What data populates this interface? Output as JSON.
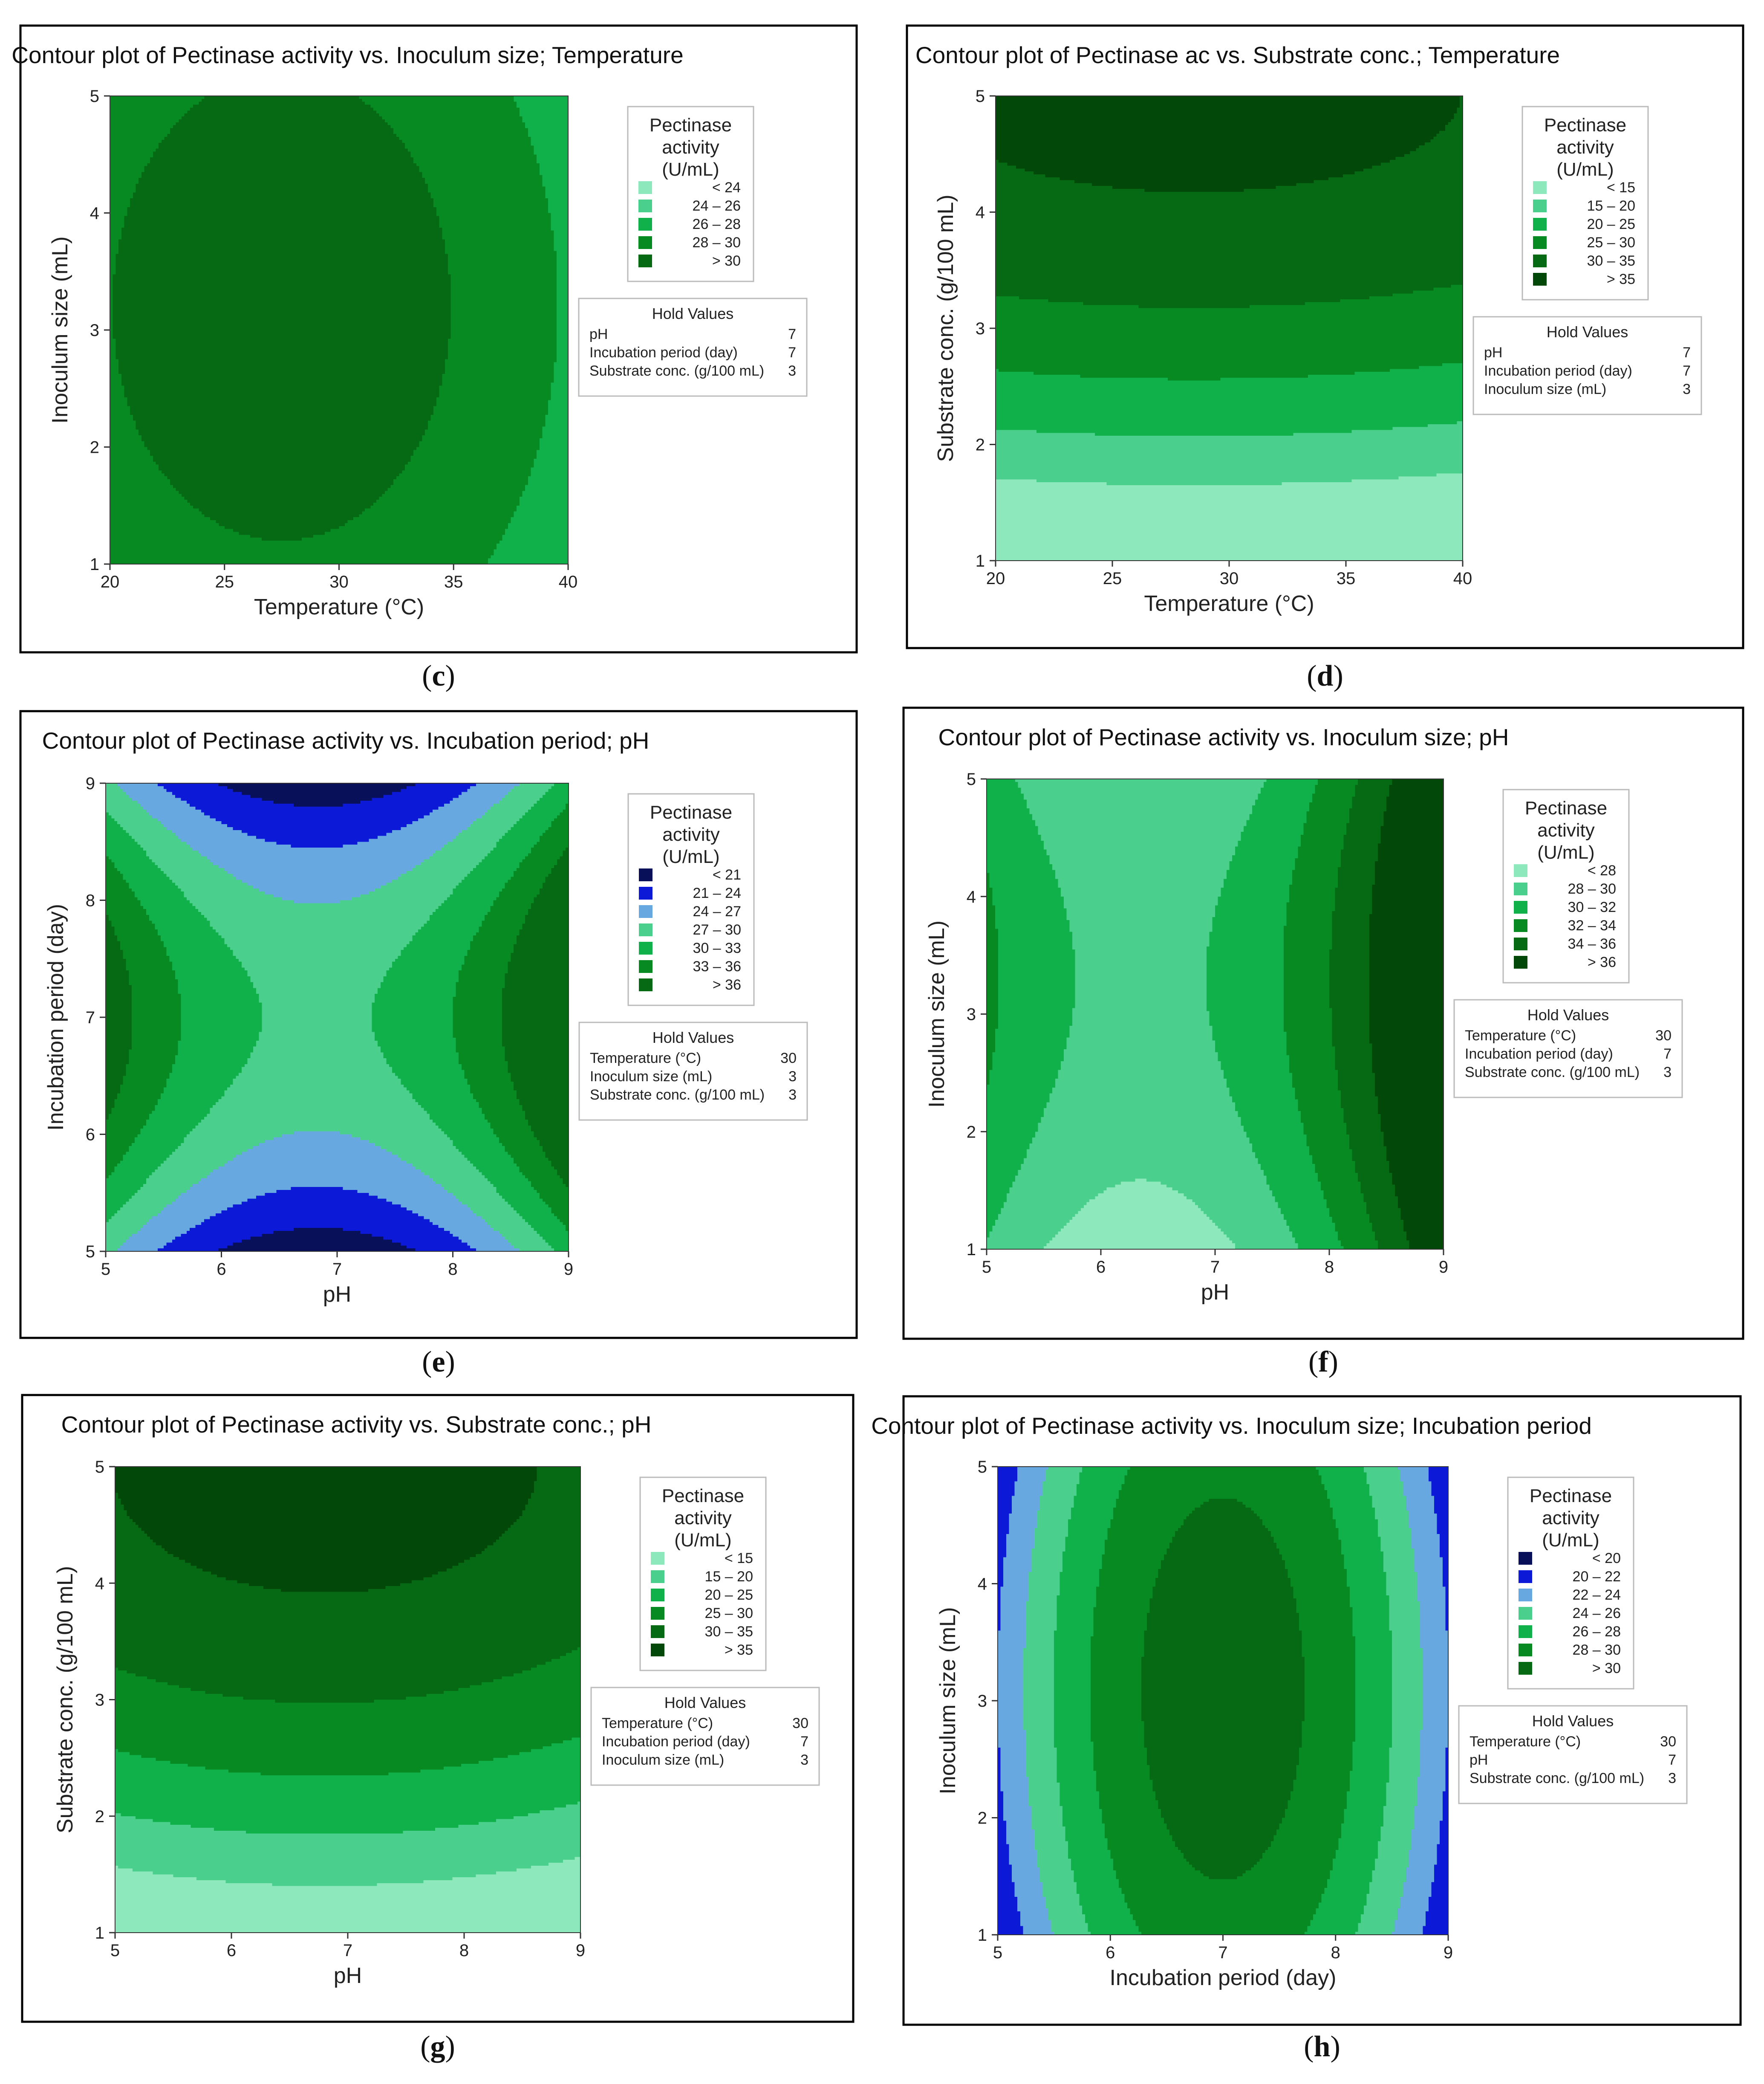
{
  "colors": {
    "green_lightest": "#8de8bc",
    "green_light": "#4bcf8c",
    "green_mid": "#10b04a",
    "green_dark": "#078a22",
    "green_darker": "#066a14",
    "green_darkest": "#024808",
    "blue_navy": "#08105a",
    "blue_strong": "#0c1ad8",
    "blue_sky": "#68a8e0"
  },
  "chart_data": [
    {
      "type": "contour",
      "caption": "c",
      "title": "Contour plot of Pectinase activity vs. Inoculum size; Temperature",
      "xlabel": "Temperature (°C)",
      "ylabel": "Inoculum size (mL)",
      "xlim": [
        20,
        40
      ],
      "ylim": [
        1,
        5
      ],
      "xticks": [
        "20",
        "25",
        "30",
        "35",
        "40"
      ],
      "yticks": [
        "1",
        "2",
        "3",
        "4",
        "5"
      ],
      "model": {
        "base": 31.2,
        "cx": 27.5,
        "ax": -0.022,
        "cy": 3.2,
        "ay": -0.3,
        "bx": 0,
        "by": 0
      },
      "levels": [
        {
          "min": null,
          "max": 24,
          "label": "< 24",
          "color": "#8de8bc"
        },
        {
          "min": 24,
          "max": 26,
          "label": "24 – 26",
          "color": "#4bcf8c"
        },
        {
          "min": 26,
          "max": 28,
          "label": "26 – 28",
          "color": "#10b04a"
        },
        {
          "min": 28,
          "max": 30,
          "label": "28 – 30",
          "color": "#078a22"
        },
        {
          "min": 30,
          "max": null,
          "label": "> 30",
          "color": "#066a14"
        }
      ],
      "legend_title": [
        "Pectinase",
        "activity",
        "(U/mL)"
      ],
      "hold_title": "Hold Values",
      "hold": [
        {
          "name": "pH",
          "value": "7"
        },
        {
          "name": "Incubation period (day)",
          "value": "7"
        },
        {
          "name": "Substrate conc. (g/100 mL)",
          "value": "3"
        }
      ]
    },
    {
      "type": "contour",
      "caption": "d",
      "title": "Contour plot of Pectinase ac vs. Substrate conc.; Temperature",
      "xlabel": "Temperature (°C)",
      "ylabel": "Substrate conc. (g/100 mL)",
      "xlim": [
        20,
        40
      ],
      "ylim": [
        1,
        5
      ],
      "xticks": [
        "20",
        "25",
        "30",
        "35",
        "40"
      ],
      "yticks": [
        "1",
        "2",
        "3",
        "4",
        "5"
      ],
      "model": {
        "base": 36.3,
        "cx": 28.5,
        "ax": -0.01,
        "cy": 5.0,
        "ay": -1.9,
        "bx": 0,
        "by": 0
      },
      "levels": [
        {
          "min": null,
          "max": 15,
          "label": "< 15",
          "color": "#8de8bc"
        },
        {
          "min": 15,
          "max": 20,
          "label": "15 – 20",
          "color": "#4bcf8c"
        },
        {
          "min": 20,
          "max": 25,
          "label": "20 – 25",
          "color": "#10b04a"
        },
        {
          "min": 25,
          "max": 30,
          "label": "25 – 30",
          "color": "#078a22"
        },
        {
          "min": 30,
          "max": 35,
          "label": "30 – 35",
          "color": "#066a14"
        },
        {
          "min": 35,
          "max": null,
          "label": "> 35",
          "color": "#024808"
        }
      ],
      "legend_title": [
        "Pectinase",
        "activity",
        "(U/mL)"
      ],
      "hold_title": "Hold Values",
      "hold": [
        {
          "name": "pH",
          "value": "7"
        },
        {
          "name": "Incubation period (day)",
          "value": "7"
        },
        {
          "name": "Inoculum size (mL)",
          "value": "3"
        }
      ]
    },
    {
      "type": "contour",
      "caption": "e",
      "title": "Contour plot of Pectinase activity vs. Incubation period; pH",
      "xlabel": "pH",
      "ylabel": "Incubation period (day)",
      "xlim": [
        5,
        9
      ],
      "ylim": [
        5,
        9
      ],
      "xticks": [
        "5",
        "6",
        "7",
        "8",
        "9"
      ],
      "yticks": [
        "5",
        "6",
        "7",
        "8",
        "9"
      ],
      "model": {
        "base": 29.5,
        "cx": 7.0,
        "ax": 2.6,
        "cy": 7.0,
        "ay": -2.6,
        "bx": 0.9,
        "by": 0
      },
      "levels": [
        {
          "min": null,
          "max": 21,
          "label": "< 21",
          "color": "#08105a"
        },
        {
          "min": 21,
          "max": 24,
          "label": "21 – 24",
          "color": "#0c1ad8"
        },
        {
          "min": 24,
          "max": 27,
          "label": "24 – 27",
          "color": "#68a8e0"
        },
        {
          "min": 27,
          "max": 30,
          "label": "27 – 30",
          "color": "#4bcf8c"
        },
        {
          "min": 30,
          "max": 33,
          "label": "30 – 33",
          "color": "#10b04a"
        },
        {
          "min": 33,
          "max": 36,
          "label": "33 – 36",
          "color": "#078a22"
        },
        {
          "min": 36,
          "max": null,
          "label": "> 36",
          "color": "#066a14"
        }
      ],
      "legend_title": [
        "Pectinase",
        "activity",
        "(U/mL)"
      ],
      "hold_title": "Hold Values",
      "hold": [
        {
          "name": "Temperature (°C)",
          "value": "30"
        },
        {
          "name": "Inoculum size (mL)",
          "value": "3"
        },
        {
          "name": "Substrate conc. (g/100 mL)",
          "value": "3"
        }
      ]
    },
    {
      "type": "contour",
      "caption": "f",
      "title": "Contour plot of Pectinase activity vs. Inoculum size; pH",
      "xlabel": "pH",
      "ylabel": "Inoculum size (mL)",
      "xlim": [
        5,
        9
      ],
      "ylim": [
        1,
        5
      ],
      "xticks": [
        "5",
        "6",
        "7",
        "8",
        "9"
      ],
      "yticks": [
        "1",
        "2",
        "3",
        "4",
        "5"
      ],
      "model": {
        "base": 29.5,
        "cx": 6.5,
        "ax": 1.65,
        "cy": 3.3,
        "ay": -0.5,
        "bx": 0.5,
        "by": 0
      },
      "levels": [
        {
          "min": null,
          "max": 28,
          "label": "< 28",
          "color": "#8de8bc"
        },
        {
          "min": 28,
          "max": 30,
          "label": "28 – 30",
          "color": "#4bcf8c"
        },
        {
          "min": 30,
          "max": 32,
          "label": "30 – 32",
          "color": "#10b04a"
        },
        {
          "min": 32,
          "max": 34,
          "label": "32 – 34",
          "color": "#078a22"
        },
        {
          "min": 34,
          "max": 36,
          "label": "34 – 36",
          "color": "#066a14"
        },
        {
          "min": 36,
          "max": null,
          "label": "> 36",
          "color": "#024808"
        }
      ],
      "legend_title": [
        "Pectinase",
        "activity",
        "(U/mL)"
      ],
      "hold_title": "Hold Values",
      "hold": [
        {
          "name": "Temperature (°C)",
          "value": "30"
        },
        {
          "name": "Incubation period (day)",
          "value": "7"
        },
        {
          "name": "Substrate conc. (g/100 mL)",
          "value": "3"
        }
      ]
    },
    {
      "type": "contour",
      "caption": "g",
      "title": "Contour plot of Pectinase activity vs. Substrate conc.; pH",
      "xlabel": "pH",
      "ylabel": "Substrate conc. (g/100 mL)",
      "xlim": [
        5,
        9
      ],
      "ylim": [
        1,
        5
      ],
      "xticks": [
        "5",
        "6",
        "7",
        "8",
        "9"
      ],
      "yticks": [
        "1",
        "2",
        "3",
        "4",
        "5"
      ],
      "model": {
        "base": 37.0,
        "cx": 6.8,
        "ax": -0.6,
        "cy": 5.0,
        "ay": -1.7,
        "bx": 0,
        "by": 0
      },
      "levels": [
        {
          "min": null,
          "max": 15,
          "label": "< 15",
          "color": "#8de8bc"
        },
        {
          "min": 15,
          "max": 20,
          "label": "15 – 20",
          "color": "#4bcf8c"
        },
        {
          "min": 20,
          "max": 25,
          "label": "20 – 25",
          "color": "#10b04a"
        },
        {
          "min": 25,
          "max": 30,
          "label": "25 – 30",
          "color": "#078a22"
        },
        {
          "min": 30,
          "max": 35,
          "label": "30 – 35",
          "color": "#066a14"
        },
        {
          "min": 35,
          "max": null,
          "label": "> 35",
          "color": "#024808"
        }
      ],
      "legend_title": [
        "Pectinase",
        "activity",
        "(U/mL)"
      ],
      "hold_title": "Hold Values",
      "hold": [
        {
          "name": "Temperature (°C)",
          "value": "30"
        },
        {
          "name": "Incubation period (day)",
          "value": "7"
        },
        {
          "name": "Inoculum size (mL)",
          "value": "3"
        }
      ]
    },
    {
      "type": "contour",
      "caption": "h",
      "title": "Contour plot of Pectinase activity vs. Inoculum size; Incubation period",
      "xlabel": "Incubation period (day)",
      "ylabel": "Inoculum size (mL)",
      "xlim": [
        5,
        9
      ],
      "ylim": [
        1,
        5
      ],
      "xticks": [
        "5",
        "6",
        "7",
        "8",
        "9"
      ],
      "yticks": [
        "1",
        "2",
        "3",
        "4",
        "5"
      ],
      "model": {
        "base": 31.2,
        "cx": 7.0,
        "ax": -2.3,
        "cy": 3.1,
        "ay": -0.45,
        "bx": 0,
        "by": 0
      },
      "levels": [
        {
          "min": null,
          "max": 20,
          "label": "< 20",
          "color": "#08105a"
        },
        {
          "min": 20,
          "max": 22,
          "label": "20 – 22",
          "color": "#0c1ad8"
        },
        {
          "min": 22,
          "max": 24,
          "label": "22 – 24",
          "color": "#68a8e0"
        },
        {
          "min": 24,
          "max": 26,
          "label": "24 – 26",
          "color": "#4bcf8c"
        },
        {
          "min": 26,
          "max": 28,
          "label": "26 – 28",
          "color": "#10b04a"
        },
        {
          "min": 28,
          "max": 30,
          "label": "28 – 30",
          "color": "#078a22"
        },
        {
          "min": 30,
          "max": null,
          "label": "> 30",
          "color": "#066a14"
        }
      ],
      "legend_title": [
        "Pectinase",
        "activity",
        "(U/mL)"
      ],
      "hold_title": "Hold Values",
      "hold": [
        {
          "name": "Temperature (°C)",
          "value": "30"
        },
        {
          "name": "pH",
          "value": "7"
        },
        {
          "name": "Substrate conc. (g/100 mL)",
          "value": "3"
        }
      ]
    }
  ]
}
